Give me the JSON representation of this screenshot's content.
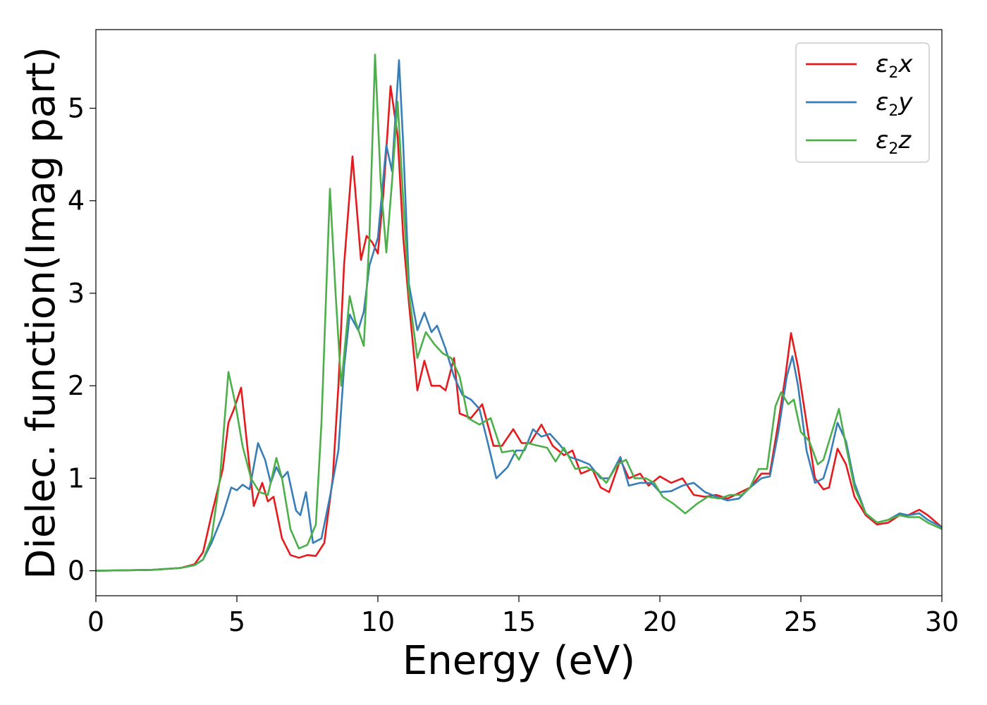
{
  "chart_data": {
    "type": "line",
    "title": "",
    "xlabel": "Energy (eV)",
    "ylabel": "Dielec. function(Imag part)",
    "xlim": [
      0,
      30
    ],
    "ylim": [
      -0.27,
      5.85
    ],
    "xticks": [
      0,
      5,
      10,
      15,
      20,
      25,
      30
    ],
    "yticks": [
      0,
      1,
      2,
      3,
      4,
      5
    ],
    "grid": false,
    "legend_position": "top-right",
    "series": [
      {
        "name": "x",
        "color": "#e41a1c",
        "points": [
          [
            0,
            0.0
          ],
          [
            2,
            0.01
          ],
          [
            3,
            0.03
          ],
          [
            3.5,
            0.07
          ],
          [
            3.8,
            0.2
          ],
          [
            4.1,
            0.6
          ],
          [
            4.5,
            1.1
          ],
          [
            4.7,
            1.6
          ],
          [
            4.9,
            1.75
          ],
          [
            5.15,
            1.98
          ],
          [
            5.35,
            1.4
          ],
          [
            5.6,
            0.7
          ],
          [
            5.9,
            0.95
          ],
          [
            6.1,
            0.75
          ],
          [
            6.3,
            0.8
          ],
          [
            6.6,
            0.35
          ],
          [
            6.9,
            0.17
          ],
          [
            7.2,
            0.14
          ],
          [
            7.5,
            0.17
          ],
          [
            7.8,
            0.16
          ],
          [
            8.1,
            0.3
          ],
          [
            8.4,
            1.0
          ],
          [
            8.6,
            2.0
          ],
          [
            8.8,
            3.3
          ],
          [
            9.1,
            4.48
          ],
          [
            9.4,
            3.36
          ],
          [
            9.6,
            3.62
          ],
          [
            9.8,
            3.55
          ],
          [
            10.0,
            3.43
          ],
          [
            10.2,
            4.1
          ],
          [
            10.45,
            5.24
          ],
          [
            10.7,
            4.7
          ],
          [
            10.9,
            3.6
          ],
          [
            11.1,
            2.9
          ],
          [
            11.4,
            1.95
          ],
          [
            11.65,
            2.27
          ],
          [
            11.9,
            2.0
          ],
          [
            12.2,
            2.0
          ],
          [
            12.4,
            1.95
          ],
          [
            12.7,
            2.3
          ],
          [
            12.9,
            1.7
          ],
          [
            13.3,
            1.65
          ],
          [
            13.7,
            1.8
          ],
          [
            14.1,
            1.35
          ],
          [
            14.4,
            1.35
          ],
          [
            14.8,
            1.53
          ],
          [
            15.1,
            1.38
          ],
          [
            15.4,
            1.38
          ],
          [
            15.8,
            1.58
          ],
          [
            16.2,
            1.35
          ],
          [
            16.6,
            1.25
          ],
          [
            16.9,
            1.3
          ],
          [
            17.2,
            1.05
          ],
          [
            17.6,
            1.1
          ],
          [
            17.9,
            0.9
          ],
          [
            18.2,
            0.85
          ],
          [
            18.6,
            1.2
          ],
          [
            18.9,
            1.0
          ],
          [
            19.3,
            1.05
          ],
          [
            19.6,
            0.92
          ],
          [
            20.0,
            1.02
          ],
          [
            20.4,
            0.95
          ],
          [
            20.8,
            1.0
          ],
          [
            21.2,
            0.82
          ],
          [
            21.6,
            0.8
          ],
          [
            22.0,
            0.82
          ],
          [
            22.4,
            0.78
          ],
          [
            22.8,
            0.84
          ],
          [
            23.2,
            0.9
          ],
          [
            23.6,
            1.05
          ],
          [
            23.9,
            1.05
          ],
          [
            24.2,
            1.6
          ],
          [
            24.45,
            2.1
          ],
          [
            24.65,
            2.57
          ],
          [
            24.9,
            2.2
          ],
          [
            25.2,
            1.6
          ],
          [
            25.5,
            1.0
          ],
          [
            25.8,
            0.88
          ],
          [
            26.0,
            0.9
          ],
          [
            26.3,
            1.32
          ],
          [
            26.6,
            1.15
          ],
          [
            26.9,
            0.8
          ],
          [
            27.3,
            0.6
          ],
          [
            27.7,
            0.5
          ],
          [
            28.1,
            0.52
          ],
          [
            28.5,
            0.6
          ],
          [
            28.8,
            0.6
          ],
          [
            29.2,
            0.66
          ],
          [
            29.5,
            0.6
          ],
          [
            30,
            0.47
          ]
        ]
      },
      {
        "name": "y",
        "color": "#377eb8",
        "points": [
          [
            0,
            0.0
          ],
          [
            2,
            0.01
          ],
          [
            3,
            0.03
          ],
          [
            3.5,
            0.06
          ],
          [
            3.8,
            0.12
          ],
          [
            4.1,
            0.3
          ],
          [
            4.5,
            0.6
          ],
          [
            4.8,
            0.9
          ],
          [
            5.0,
            0.87
          ],
          [
            5.2,
            0.93
          ],
          [
            5.45,
            0.88
          ],
          [
            5.75,
            1.38
          ],
          [
            6.0,
            1.2
          ],
          [
            6.2,
            0.95
          ],
          [
            6.4,
            1.12
          ],
          [
            6.6,
            1.0
          ],
          [
            6.8,
            1.07
          ],
          [
            7.1,
            0.65
          ],
          [
            7.25,
            0.6
          ],
          [
            7.45,
            0.85
          ],
          [
            7.7,
            0.3
          ],
          [
            8.0,
            0.35
          ],
          [
            8.3,
            0.8
          ],
          [
            8.6,
            1.3
          ],
          [
            8.8,
            2.2
          ],
          [
            9.0,
            2.77
          ],
          [
            9.3,
            2.6
          ],
          [
            9.5,
            2.8
          ],
          [
            9.7,
            3.3
          ],
          [
            10.0,
            3.6
          ],
          [
            10.3,
            4.6
          ],
          [
            10.5,
            4.32
          ],
          [
            10.75,
            5.52
          ],
          [
            10.9,
            4.6
          ],
          [
            11.1,
            3.1
          ],
          [
            11.4,
            2.6
          ],
          [
            11.65,
            2.79
          ],
          [
            11.9,
            2.58
          ],
          [
            12.1,
            2.65
          ],
          [
            12.4,
            2.4
          ],
          [
            12.7,
            2.1
          ],
          [
            13.0,
            1.9
          ],
          [
            13.3,
            1.85
          ],
          [
            13.6,
            1.75
          ],
          [
            13.9,
            1.38
          ],
          [
            14.2,
            1.0
          ],
          [
            14.6,
            1.12
          ],
          [
            14.9,
            1.3
          ],
          [
            15.2,
            1.3
          ],
          [
            15.5,
            1.53
          ],
          [
            15.8,
            1.45
          ],
          [
            16.1,
            1.48
          ],
          [
            16.4,
            1.38
          ],
          [
            16.8,
            1.23
          ],
          [
            17.1,
            1.2
          ],
          [
            17.5,
            1.15
          ],
          [
            17.9,
            1.0
          ],
          [
            18.2,
            1.0
          ],
          [
            18.6,
            1.23
          ],
          [
            18.9,
            0.92
          ],
          [
            19.3,
            0.95
          ],
          [
            19.7,
            0.95
          ],
          [
            20.0,
            0.85
          ],
          [
            20.4,
            0.86
          ],
          [
            20.8,
            0.92
          ],
          [
            21.2,
            0.95
          ],
          [
            21.6,
            0.85
          ],
          [
            22.0,
            0.8
          ],
          [
            22.4,
            0.76
          ],
          [
            22.8,
            0.78
          ],
          [
            23.2,
            0.9
          ],
          [
            23.6,
            1.0
          ],
          [
            23.9,
            1.02
          ],
          [
            24.2,
            1.5
          ],
          [
            24.5,
            2.1
          ],
          [
            24.7,
            2.32
          ],
          [
            24.9,
            2.0
          ],
          [
            25.2,
            1.3
          ],
          [
            25.5,
            0.95
          ],
          [
            25.8,
            1.0
          ],
          [
            26.0,
            1.2
          ],
          [
            26.3,
            1.6
          ],
          [
            26.6,
            1.4
          ],
          [
            26.9,
            0.95
          ],
          [
            27.3,
            0.62
          ],
          [
            27.7,
            0.52
          ],
          [
            28.1,
            0.55
          ],
          [
            28.5,
            0.62
          ],
          [
            28.8,
            0.6
          ],
          [
            29.2,
            0.62
          ],
          [
            29.5,
            0.55
          ],
          [
            30,
            0.47
          ]
        ]
      },
      {
        "name": "z",
        "color": "#4daf4a",
        "points": [
          [
            0,
            0.0
          ],
          [
            2,
            0.01
          ],
          [
            3,
            0.03
          ],
          [
            3.5,
            0.06
          ],
          [
            3.8,
            0.12
          ],
          [
            4.1,
            0.35
          ],
          [
            4.4,
            1.0
          ],
          [
            4.7,
            2.15
          ],
          [
            4.95,
            1.8
          ],
          [
            5.2,
            1.35
          ],
          [
            5.5,
            1.0
          ],
          [
            5.8,
            0.85
          ],
          [
            6.1,
            0.82
          ],
          [
            6.4,
            1.22
          ],
          [
            6.6,
            1.0
          ],
          [
            6.9,
            0.45
          ],
          [
            7.2,
            0.24
          ],
          [
            7.5,
            0.28
          ],
          [
            7.8,
            0.5
          ],
          [
            8.0,
            1.6
          ],
          [
            8.3,
            4.13
          ],
          [
            8.5,
            3.0
          ],
          [
            8.7,
            2.0
          ],
          [
            9.0,
            2.97
          ],
          [
            9.2,
            2.7
          ],
          [
            9.5,
            2.43
          ],
          [
            9.7,
            3.6
          ],
          [
            9.9,
            5.58
          ],
          [
            10.1,
            4.2
          ],
          [
            10.3,
            3.44
          ],
          [
            10.5,
            4.2
          ],
          [
            10.7,
            5.07
          ],
          [
            10.9,
            4.0
          ],
          [
            11.1,
            3.0
          ],
          [
            11.4,
            2.3
          ],
          [
            11.7,
            2.58
          ],
          [
            12.0,
            2.45
          ],
          [
            12.3,
            2.35
          ],
          [
            12.6,
            2.3
          ],
          [
            12.9,
            2.1
          ],
          [
            13.2,
            1.65
          ],
          [
            13.6,
            1.58
          ],
          [
            14.0,
            1.65
          ],
          [
            14.4,
            1.28
          ],
          [
            14.8,
            1.3
          ],
          [
            15.0,
            1.2
          ],
          [
            15.3,
            1.38
          ],
          [
            15.7,
            1.35
          ],
          [
            16.0,
            1.33
          ],
          [
            16.3,
            1.18
          ],
          [
            16.6,
            1.33
          ],
          [
            17.0,
            1.1
          ],
          [
            17.4,
            1.12
          ],
          [
            17.8,
            1.05
          ],
          [
            18.1,
            0.95
          ],
          [
            18.5,
            1.15
          ],
          [
            18.8,
            1.2
          ],
          [
            19.1,
            1.0
          ],
          [
            19.5,
            1.0
          ],
          [
            19.8,
            0.95
          ],
          [
            20.1,
            0.8
          ],
          [
            20.5,
            0.72
          ],
          [
            20.9,
            0.62
          ],
          [
            21.3,
            0.72
          ],
          [
            21.7,
            0.8
          ],
          [
            22.1,
            0.78
          ],
          [
            22.5,
            0.82
          ],
          [
            22.9,
            0.82
          ],
          [
            23.2,
            0.9
          ],
          [
            23.5,
            1.1
          ],
          [
            23.8,
            1.1
          ],
          [
            24.1,
            1.78
          ],
          [
            24.3,
            1.93
          ],
          [
            24.55,
            1.8
          ],
          [
            24.75,
            1.85
          ],
          [
            25.0,
            1.5
          ],
          [
            25.3,
            1.4
          ],
          [
            25.6,
            1.15
          ],
          [
            25.8,
            1.2
          ],
          [
            26.1,
            1.5
          ],
          [
            26.35,
            1.75
          ],
          [
            26.6,
            1.35
          ],
          [
            26.9,
            0.9
          ],
          [
            27.3,
            0.62
          ],
          [
            27.7,
            0.52
          ],
          [
            28.1,
            0.55
          ],
          [
            28.5,
            0.6
          ],
          [
            28.8,
            0.58
          ],
          [
            29.2,
            0.58
          ],
          [
            29.5,
            0.52
          ],
          [
            30,
            0.45
          ]
        ]
      }
    ]
  }
}
